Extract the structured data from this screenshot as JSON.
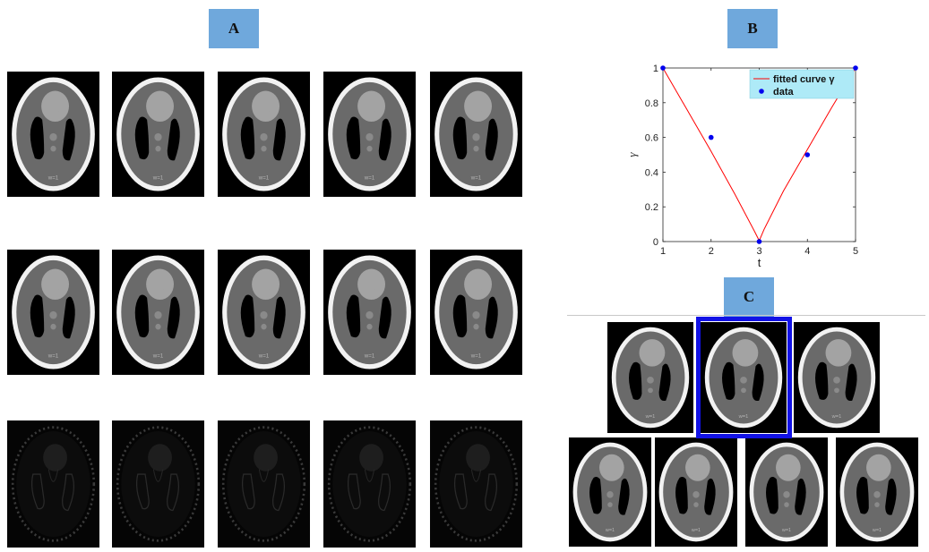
{
  "panels": {
    "a": "A",
    "b": "B",
    "c": "C"
  },
  "phantom_tile_label": "w=1",
  "chart_data": {
    "type": "line",
    "xlabel": "t",
    "ylabel": "γ",
    "xlim": [
      1,
      5
    ],
    "ylim": [
      0,
      1
    ],
    "xticks": [
      1,
      2,
      3,
      4,
      5
    ],
    "yticks": [
      0,
      0.2,
      0.4,
      0.6,
      0.8,
      1
    ],
    "grid": false,
    "legend_position": "top-right",
    "series": [
      {
        "name": "fitted curve γ",
        "kind": "line",
        "color": "#ff0000",
        "x": [
          1,
          1.5,
          2,
          2.5,
          2.9,
          3,
          3.1,
          3.5,
          4,
          4.5,
          5
        ],
        "y": [
          1,
          0.76,
          0.52,
          0.27,
          0.06,
          0.005,
          0.07,
          0.29,
          0.53,
          0.77,
          1
        ]
      },
      {
        "name": "data",
        "kind": "scatter",
        "color": "#0000ee",
        "x": [
          1,
          2,
          3,
          4,
          5
        ],
        "y": [
          1,
          0.6,
          0,
          0.5,
          1
        ]
      }
    ]
  },
  "colors": {
    "panel_label_bg": "#6fa8dc",
    "highlight": "#1212e6"
  }
}
